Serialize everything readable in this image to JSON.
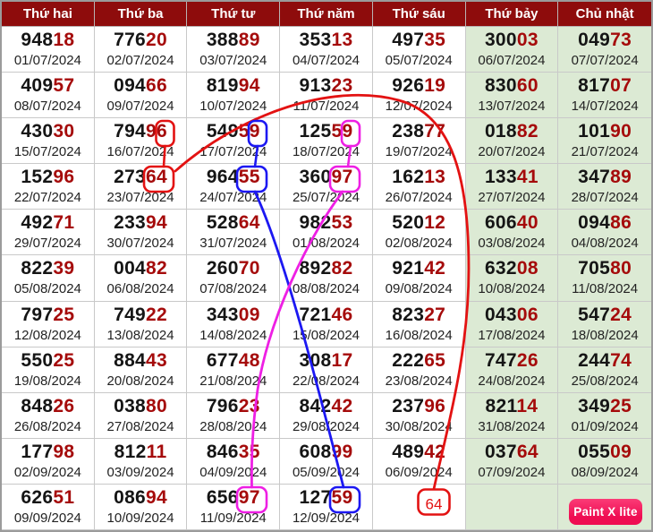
{
  "columns": [
    "Thứ hai",
    "Thứ ba",
    "Thứ tư",
    "Thứ năm",
    "Thứ sáu",
    "Thứ bảy",
    "Chủ nhật"
  ],
  "rows": [
    {
      "cells": [
        {
          "number": "94818",
          "date": "01/07/2024"
        },
        {
          "number": "77620",
          "date": "02/07/2024"
        },
        {
          "number": "38889",
          "date": "03/07/2024"
        },
        {
          "number": "35313",
          "date": "04/07/2024"
        },
        {
          "number": "49735",
          "date": "05/07/2024"
        },
        {
          "number": "30003",
          "date": "06/07/2024"
        },
        {
          "number": "04973",
          "date": "07/07/2024"
        }
      ]
    },
    {
      "cells": [
        {
          "number": "40957",
          "date": "08/07/2024"
        },
        {
          "number": "09466",
          "date": "09/07/2024"
        },
        {
          "number": "81994",
          "date": "10/07/2024"
        },
        {
          "number": "91323",
          "date": "11/07/2024"
        },
        {
          "number": "92619",
          "date": "12/07/2024"
        },
        {
          "number": "83060",
          "date": "13/07/2024"
        },
        {
          "number": "81707",
          "date": "14/07/2024"
        }
      ]
    },
    {
      "cells": [
        {
          "number": "43030",
          "date": "15/07/2024"
        },
        {
          "number": "79496",
          "date": "16/07/2024"
        },
        {
          "number": "54959",
          "date": "17/07/2024"
        },
        {
          "number": "12559",
          "date": "18/07/2024"
        },
        {
          "number": "23877",
          "date": "19/07/2024"
        },
        {
          "number": "01882",
          "date": "20/07/2024"
        },
        {
          "number": "10190",
          "date": "21/07/2024"
        }
      ]
    },
    {
      "cells": [
        {
          "number": "15296",
          "date": "22/07/2024"
        },
        {
          "number": "27364",
          "date": "23/07/2024"
        },
        {
          "number": "96455",
          "date": "24/07/2024"
        },
        {
          "number": "36097",
          "date": "25/07/2024"
        },
        {
          "number": "16213",
          "date": "26/07/2024"
        },
        {
          "number": "13341",
          "date": "27/07/2024"
        },
        {
          "number": "34789",
          "date": "28/07/2024"
        }
      ]
    },
    {
      "cells": [
        {
          "number": "49271",
          "date": "29/07/2024"
        },
        {
          "number": "23394",
          "date": "30/07/2024"
        },
        {
          "number": "52864",
          "date": "31/07/2024"
        },
        {
          "number": "98253",
          "date": "01/08/2024"
        },
        {
          "number": "52012",
          "date": "02/08/2024"
        },
        {
          "number": "60640",
          "date": "03/08/2024"
        },
        {
          "number": "09486",
          "date": "04/08/2024"
        }
      ]
    },
    {
      "cells": [
        {
          "number": "82239",
          "date": "05/08/2024"
        },
        {
          "number": "00482",
          "date": "06/08/2024"
        },
        {
          "number": "26070",
          "date": "07/08/2024"
        },
        {
          "number": "89282",
          "date": "08/08/2024"
        },
        {
          "number": "92142",
          "date": "09/08/2024"
        },
        {
          "number": "63208",
          "date": "10/08/2024"
        },
        {
          "number": "70580",
          "date": "11/08/2024"
        }
      ]
    },
    {
      "cells": [
        {
          "number": "79725",
          "date": "12/08/2024"
        },
        {
          "number": "74922",
          "date": "13/08/2024"
        },
        {
          "number": "34309",
          "date": "14/08/2024"
        },
        {
          "number": "72146",
          "date": "15/08/2024"
        },
        {
          "number": "82327",
          "date": "16/08/2024"
        },
        {
          "number": "04306",
          "date": "17/08/2024"
        },
        {
          "number": "54724",
          "date": "18/08/2024"
        }
      ]
    },
    {
      "cells": [
        {
          "number": "55025",
          "date": "19/08/2024"
        },
        {
          "number": "88443",
          "date": "20/08/2024"
        },
        {
          "number": "67748",
          "date": "21/08/2024"
        },
        {
          "number": "30817",
          "date": "22/08/2024"
        },
        {
          "number": "22265",
          "date": "23/08/2024"
        },
        {
          "number": "74726",
          "date": "24/08/2024"
        },
        {
          "number": "24474",
          "date": "25/08/2024"
        }
      ]
    },
    {
      "cells": [
        {
          "number": "84826",
          "date": "26/08/2024"
        },
        {
          "number": "03880",
          "date": "27/08/2024"
        },
        {
          "number": "79623",
          "date": "28/08/2024"
        },
        {
          "number": "84242",
          "date": "29/08/2024"
        },
        {
          "number": "23796",
          "date": "30/08/2024"
        },
        {
          "number": "82114",
          "date": "31/08/2024"
        },
        {
          "number": "34925",
          "date": "01/09/2024"
        }
      ]
    },
    {
      "cells": [
        {
          "number": "17798",
          "date": "02/09/2024"
        },
        {
          "number": "81211",
          "date": "03/09/2024"
        },
        {
          "number": "84635",
          "date": "04/09/2024"
        },
        {
          "number": "60899",
          "date": "05/09/2024"
        },
        {
          "number": "48942",
          "date": "06/09/2024"
        },
        {
          "number": "03764",
          "date": "07/09/2024"
        },
        {
          "number": "05509",
          "date": "08/09/2024"
        }
      ]
    },
    {
      "cells": [
        {
          "number": "62651",
          "date": "09/09/2024"
        },
        {
          "number": "08694",
          "date": "10/09/2024"
        },
        {
          "number": "65697",
          "date": "11/09/2024"
        },
        {
          "number": "12759",
          "date": "12/09/2024"
        },
        null,
        null,
        null
      ]
    }
  ],
  "annotations": {
    "floating_label": "64",
    "circles": [
      {
        "color": "red",
        "digits": "6",
        "cell_date": "16/07/2024"
      },
      {
        "color": "red",
        "digits": "64",
        "cell_date": "23/07/2024"
      },
      {
        "color": "blue",
        "digits": "9",
        "cell_date": "17/07/2024"
      },
      {
        "color": "blue",
        "digits": "55",
        "cell_date": "24/07/2024"
      },
      {
        "color": "blue",
        "digits": "59",
        "cell_date": "12/09/2024"
      },
      {
        "color": "magenta",
        "digits": "9",
        "cell_date": "18/07/2024"
      },
      {
        "color": "magenta",
        "digits": "97",
        "cell_date": "25/07/2024"
      },
      {
        "color": "magenta",
        "digits": "97",
        "cell_date": "11/09/2024"
      }
    ]
  },
  "watermark": {
    "label": "Paint X lite"
  },
  "colors": {
    "header_bg": "#8e0c0c",
    "weekend_bg": "#dcead4",
    "digit_dark": "#151515",
    "digit_red": "#a50b0b",
    "annotation_red": "#e31212",
    "annotation_blue": "#1c18f2",
    "annotation_magenta": "#ee1fe4",
    "badge_bg": "#ef0d52",
    "badge_top": "#fb3b77"
  }
}
